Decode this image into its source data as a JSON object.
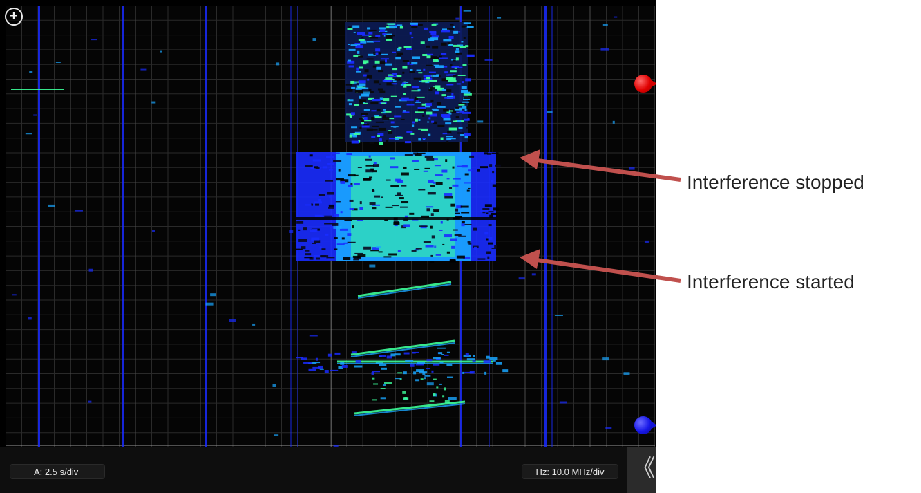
{
  "toolbar": {
    "add_icon": "+",
    "collapse_icon": "《"
  },
  "status": {
    "timebase": "A: 2.5 s/div",
    "frequency": "Hz: 10.0 MHz/div"
  },
  "annotations": {
    "stopped": "Interference stopped",
    "started": "Interference started"
  },
  "colors": {
    "marker_top": "#e00000",
    "marker_bottom": "#1717e8",
    "arrow": "#c0504d",
    "signal_low": "#1a2cff",
    "signal_mid": "#19a6ff",
    "signal_high": "#3dff9a"
  }
}
